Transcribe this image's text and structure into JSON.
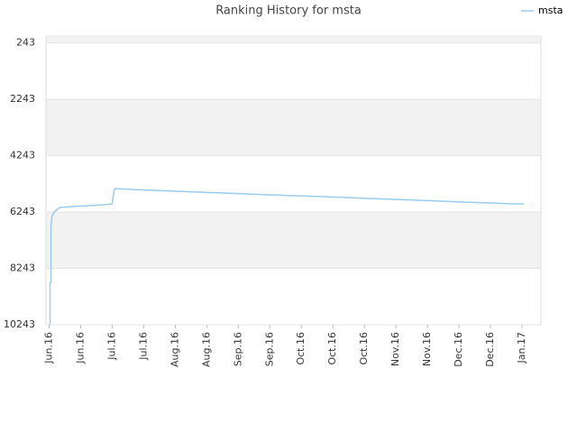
{
  "chart_data": {
    "type": "line",
    "title": "Ranking History for msta",
    "x": [
      0.03,
      0.03,
      0.06,
      0.06,
      0.09,
      0.14,
      0.23,
      0.34,
      0.71,
      1.23,
      1.77,
      2.0,
      2.03,
      2.06,
      2.09,
      2.57,
      3.29,
      4.06,
      4.77,
      5.57,
      6.29,
      7.0,
      7.86,
      8.71,
      9.43,
      10.14,
      11.0,
      11.71,
      12.43,
      13.14,
      14.0,
      14.71,
      15.06
    ],
    "series": [
      {
        "name": "msta",
        "color": "#99ccee",
        "values": [
          10243,
          8739,
          8739,
          6722,
          6402,
          6274,
          6178,
          6082,
          6050,
          6018,
          5986,
          5954,
          5698,
          5506,
          5410,
          5442,
          5474,
          5506,
          5538,
          5570,
          5602,
          5634,
          5666,
          5698,
          5730,
          5762,
          5794,
          5826,
          5858,
          5890,
          5922,
          5954,
          5954
        ]
      }
    ],
    "xlim": [
      -0.1,
      15.6
    ],
    "xticks": [
      {
        "value": 0,
        "label": "Jun.16"
      },
      {
        "value": 1,
        "label": "Jun.16"
      },
      {
        "value": 2,
        "label": "Jul.16"
      },
      {
        "value": 3,
        "label": "Jul.16"
      },
      {
        "value": 4,
        "label": "Aug.16"
      },
      {
        "value": 5,
        "label": "Aug.16"
      },
      {
        "value": 6,
        "label": "Sep.16"
      },
      {
        "value": 7,
        "label": "Sep.16"
      },
      {
        "value": 8,
        "label": "Oct.16"
      },
      {
        "value": 9,
        "label": "Oct.16"
      },
      {
        "value": 10,
        "label": "Oct.16"
      },
      {
        "value": 11,
        "label": "Nov.16"
      },
      {
        "value": 12,
        "label": "Nov.16"
      },
      {
        "value": 13,
        "label": "Dec.16"
      },
      {
        "value": 14,
        "label": "Dec.16"
      },
      {
        "value": 15,
        "label": "Jan.17"
      }
    ],
    "ylim": [
      10243,
      0
    ],
    "yticks": [
      243,
      2243,
      4243,
      6243,
      8243,
      10243
    ],
    "legend": "top-right"
  }
}
